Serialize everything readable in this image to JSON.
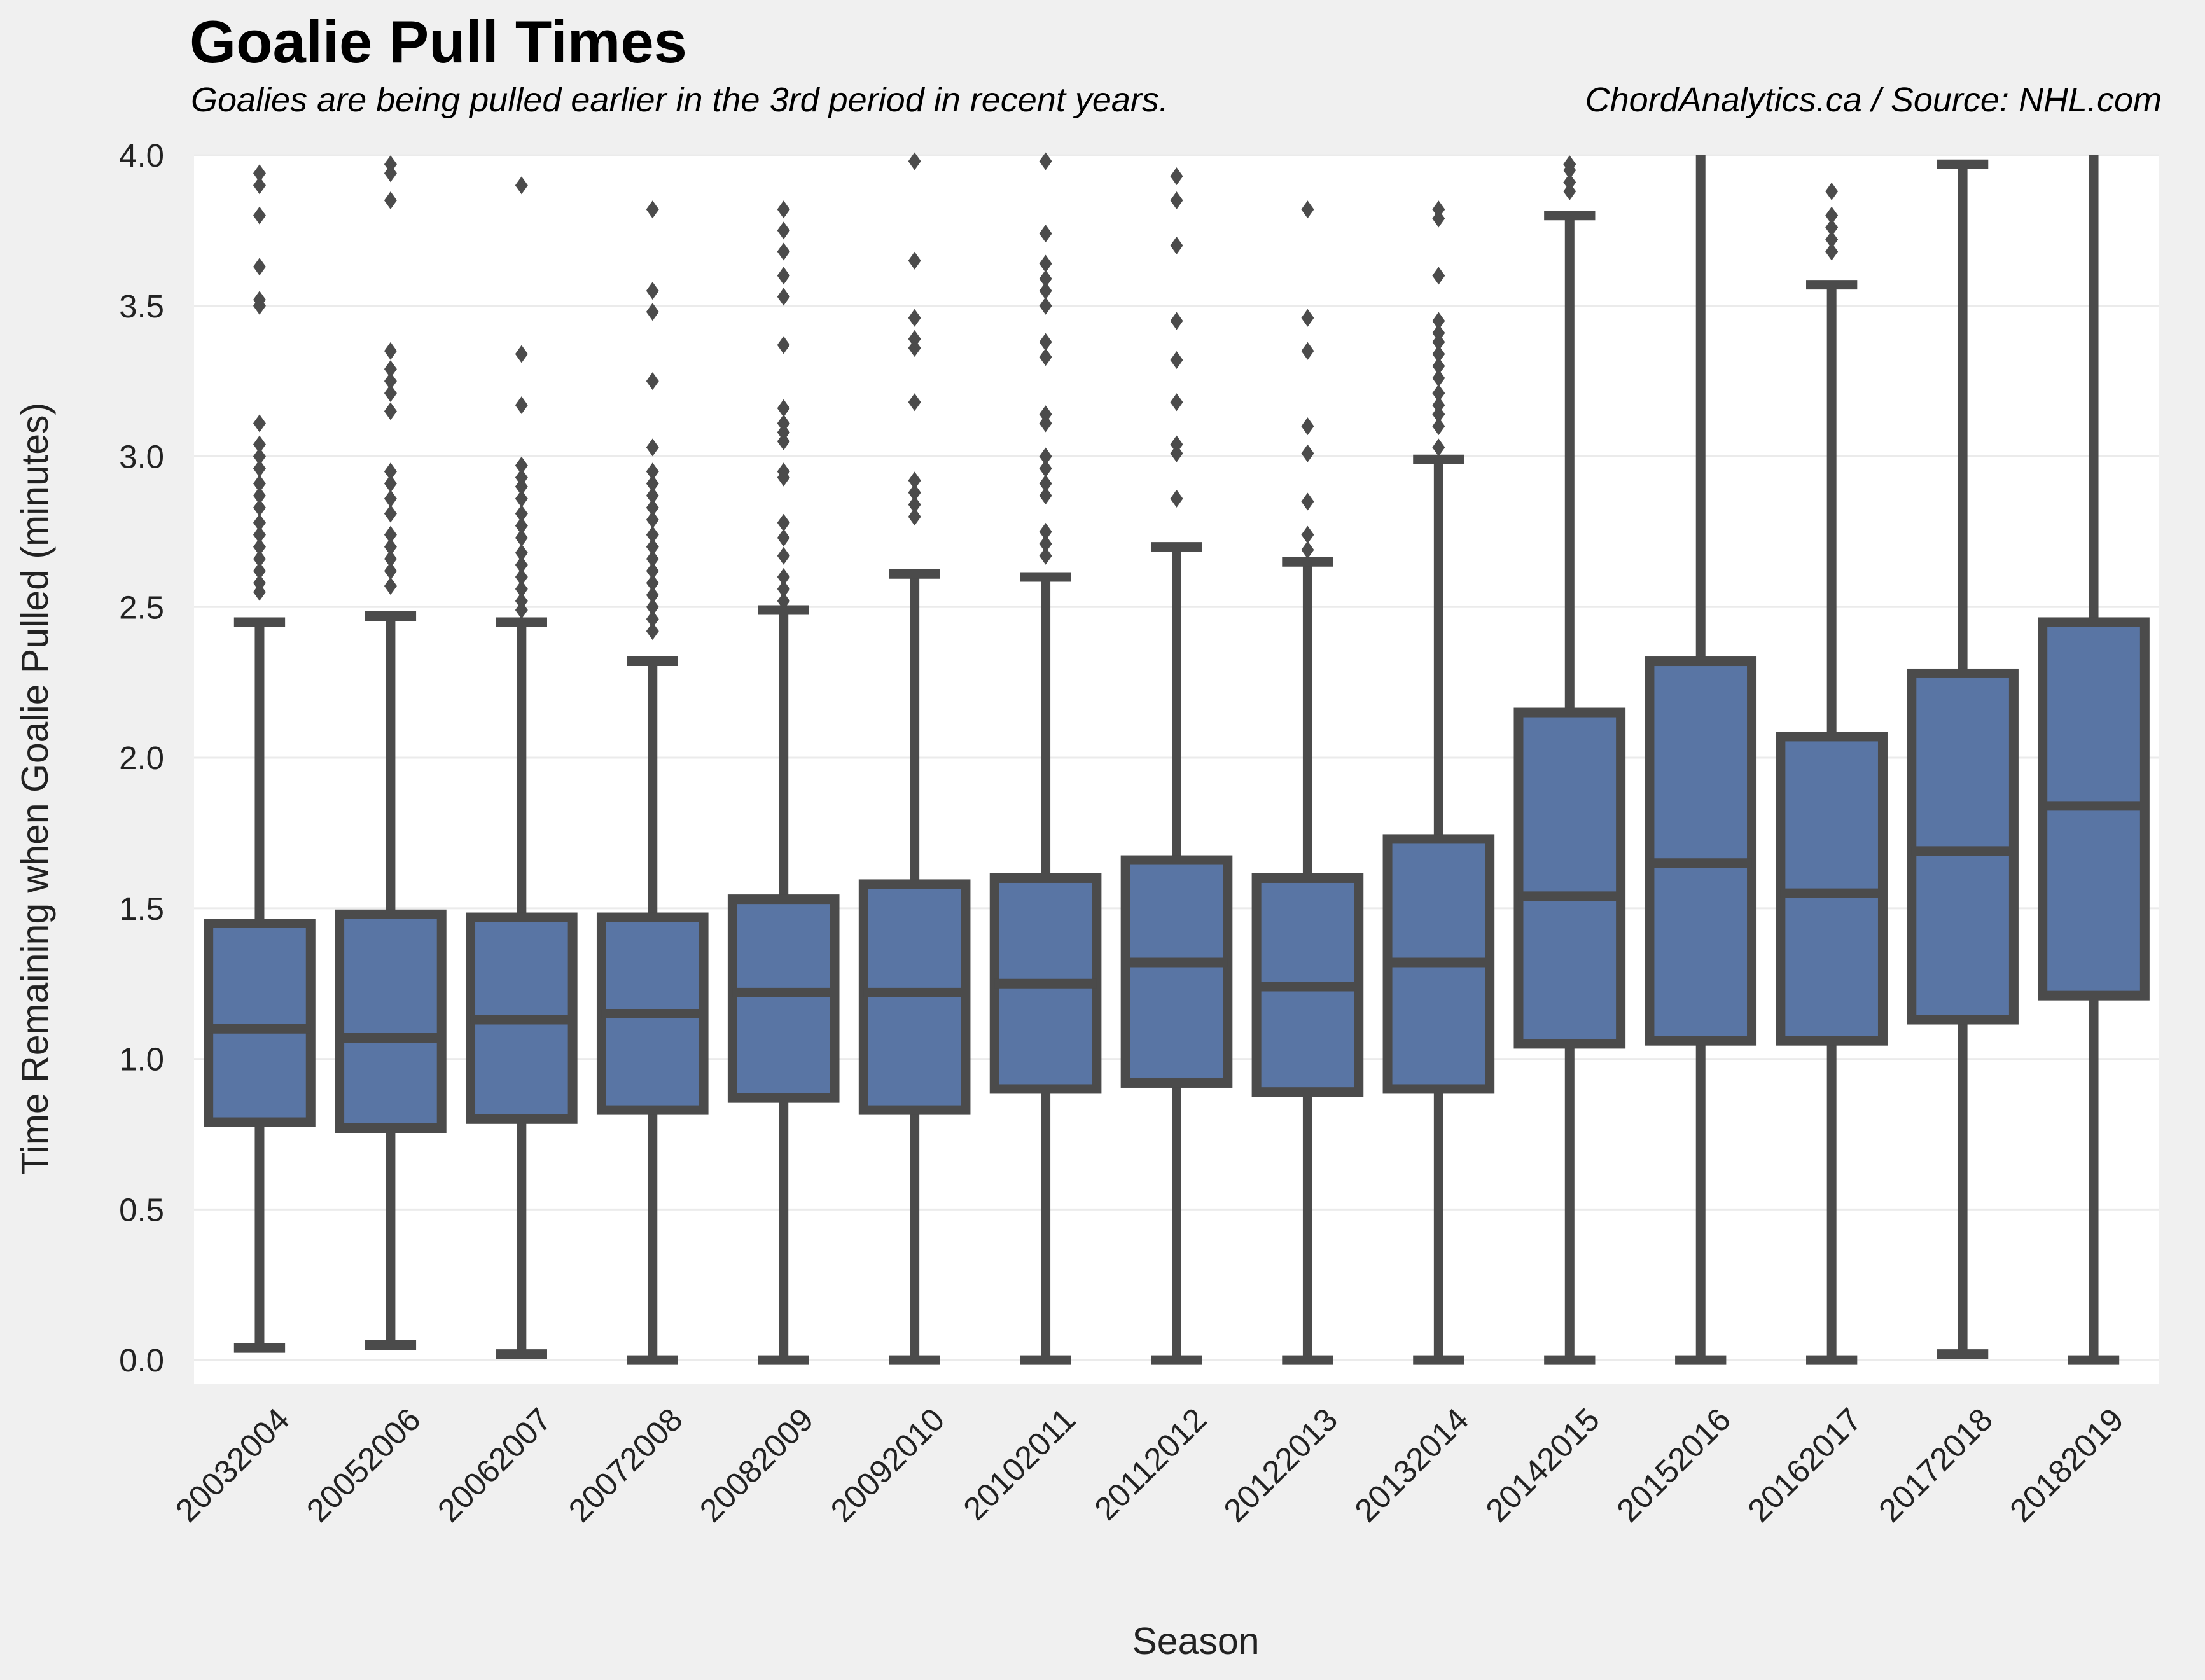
{
  "header": {
    "title": "Goalie Pull Times",
    "subtitle": "Goalies are being pulled earlier in the 3rd period in recent years.",
    "credit": "ChordAnalytics.ca  /  Source: NHL.com"
  },
  "colors": {
    "page_background": "#f0f0f0",
    "plot_background": "#ffffff",
    "box_fill": "#5975a4",
    "box_edge": "#4b4b4b",
    "grid": "#ebebeb"
  },
  "chart_data": {
    "type": "boxplot",
    "title": "Goalie Pull Times",
    "xlabel": "Season",
    "ylabel": "Time Remaining when Goalie Pulled (minutes)",
    "ylim": [
      -0.08,
      4.0
    ],
    "yticks": [
      "0.0",
      "0.5",
      "1.0",
      "1.5",
      "2.0",
      "2.5",
      "3.0",
      "3.5",
      "4.0"
    ],
    "grid": true,
    "categories": [
      "20032004",
      "20052006",
      "20062007",
      "20072008",
      "20082009",
      "20092010",
      "20102011",
      "20112012",
      "20122013",
      "20132014",
      "20142015",
      "20152016",
      "20162017",
      "20172018",
      "20182019"
    ],
    "boxes": [
      {
        "whislo": 0.04,
        "q1": 0.79,
        "med": 1.1,
        "q3": 1.45,
        "whishi": 2.45,
        "fliers": [
          2.55,
          2.58,
          2.62,
          2.66,
          2.7,
          2.74,
          2.78,
          2.83,
          2.87,
          2.91,
          2.96,
          3.0,
          3.04,
          3.11,
          3.5,
          3.52,
          3.63,
          3.8,
          3.9,
          3.94
        ]
      },
      {
        "whislo": 0.05,
        "q1": 0.77,
        "med": 1.07,
        "q3": 1.48,
        "whishi": 2.47,
        "fliers": [
          2.57,
          2.62,
          2.66,
          2.7,
          2.74,
          2.81,
          2.86,
          2.91,
          2.95,
          3.15,
          3.21,
          3.25,
          3.29,
          3.35,
          3.85,
          3.94,
          3.97
        ]
      },
      {
        "whislo": 0.02,
        "q1": 0.8,
        "med": 1.13,
        "q3": 1.47,
        "whishi": 2.45,
        "fliers": [
          2.49,
          2.52,
          2.56,
          2.6,
          2.64,
          2.68,
          2.73,
          2.77,
          2.81,
          2.86,
          2.9,
          2.93,
          2.97,
          3.17,
          3.34,
          3.9
        ]
      },
      {
        "whislo": 0.0,
        "q1": 0.83,
        "med": 1.15,
        "q3": 1.47,
        "whishi": 2.32,
        "fliers": [
          2.42,
          2.46,
          2.5,
          2.54,
          2.58,
          2.62,
          2.66,
          2.7,
          2.74,
          2.79,
          2.83,
          2.87,
          2.91,
          2.95,
          3.03,
          3.25,
          3.48,
          3.55,
          3.82
        ]
      },
      {
        "whislo": 0.0,
        "q1": 0.87,
        "med": 1.22,
        "q3": 1.53,
        "whishi": 2.49,
        "fliers": [
          2.52,
          2.56,
          2.6,
          2.67,
          2.73,
          2.78,
          2.93,
          2.95,
          3.05,
          3.08,
          3.11,
          3.16,
          3.37,
          3.53,
          3.6,
          3.68,
          3.75,
          3.82
        ]
      },
      {
        "whislo": 0.0,
        "q1": 0.83,
        "med": 1.22,
        "q3": 1.58,
        "whishi": 2.61,
        "fliers": [
          2.8,
          2.84,
          2.88,
          2.92,
          3.18,
          3.36,
          3.39,
          3.46,
          3.65,
          3.98
        ]
      },
      {
        "whislo": 0.0,
        "q1": 0.9,
        "med": 1.25,
        "q3": 1.6,
        "whishi": 2.6,
        "fliers": [
          2.67,
          2.71,
          2.75,
          2.87,
          2.91,
          2.96,
          3.0,
          3.11,
          3.14,
          3.33,
          3.38,
          3.5,
          3.55,
          3.59,
          3.64,
          3.74,
          3.98
        ]
      },
      {
        "whislo": 0.0,
        "q1": 0.92,
        "med": 1.32,
        "q3": 1.66,
        "whishi": 2.7,
        "fliers": [
          2.86,
          3.01,
          3.04,
          3.18,
          3.32,
          3.45,
          3.7,
          3.85,
          3.93
        ]
      },
      {
        "whislo": 0.0,
        "q1": 0.89,
        "med": 1.24,
        "q3": 1.6,
        "whishi": 2.65,
        "fliers": [
          2.69,
          2.74,
          2.85,
          3.01,
          3.1,
          3.35,
          3.46,
          3.82
        ]
      },
      {
        "whislo": 0.0,
        "q1": 0.9,
        "med": 1.32,
        "q3": 1.73,
        "whishi": 2.99,
        "fliers": [
          3.03,
          3.1,
          3.14,
          3.17,
          3.21,
          3.26,
          3.3,
          3.34,
          3.38,
          3.41,
          3.45,
          3.6,
          3.79,
          3.82
        ]
      },
      {
        "whislo": 0.0,
        "q1": 1.05,
        "med": 1.54,
        "q3": 2.15,
        "whishi": 3.8,
        "fliers": [
          3.88,
          3.91,
          3.95,
          3.97
        ]
      },
      {
        "whislo": 0.0,
        "q1": 1.06,
        "med": 1.65,
        "q3": 2.32,
        "whishi": 4.0,
        "fliers": []
      },
      {
        "whislo": 0.0,
        "q1": 1.06,
        "med": 1.55,
        "q3": 2.07,
        "whishi": 3.57,
        "fliers": [
          3.68,
          3.72,
          3.76,
          3.8,
          3.88
        ]
      },
      {
        "whislo": 0.02,
        "q1": 1.13,
        "med": 1.69,
        "q3": 2.28,
        "whishi": 3.97,
        "fliers": []
      },
      {
        "whislo": 0.0,
        "q1": 1.21,
        "med": 1.84,
        "q3": 2.45,
        "whishi": 4.0,
        "fliers": []
      }
    ]
  }
}
